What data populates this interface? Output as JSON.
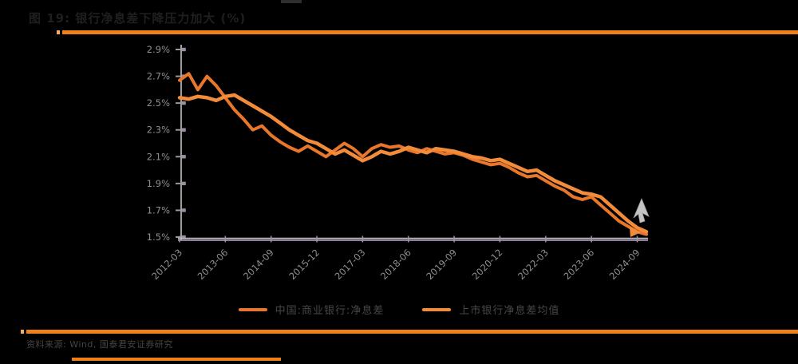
{
  "figure": {
    "title": "图 19: 银行净息差下降压力加大 (%)",
    "source_note": "资料来源: Wind, 国泰君安证券研究",
    "accent_color": "#F08119",
    "accent_light": "#F7AA60"
  },
  "chart_data": {
    "type": "line",
    "title": "银行净息差 (%)",
    "xlabel": "",
    "ylabel": "",
    "ylim": [
      1.5,
      2.9
    ],
    "y_ticks": [
      2.9,
      2.7,
      2.5,
      2.3,
      2.1,
      1.9,
      1.7,
      1.5
    ],
    "grid": false,
    "legend_position": "bottom",
    "n_points": 52,
    "x_start": "2012-03",
    "x_freq": "quarterly",
    "tick_indices": [
      0,
      5,
      10,
      15,
      20,
      25,
      30,
      35,
      40,
      45,
      50
    ],
    "x_tick_labels": [
      "2012-03",
      "2013-06",
      "2014-09",
      "2015-12",
      "2017-03",
      "2018-06",
      "2019-09",
      "2020-12",
      "2022-03",
      "2023-06",
      "2024-09"
    ],
    "axis_color": "#c3c3c3",
    "baseline_color": "#b49ac1",
    "tick_text_color": "#8e8e8e",
    "series": [
      {
        "name": "中国:商业银行:净息差",
        "color": "#E8762B",
        "width": 4,
        "values": [
          2.67,
          2.72,
          2.6,
          2.7,
          2.63,
          2.54,
          2.45,
          2.38,
          2.3,
          2.33,
          2.26,
          2.21,
          2.17,
          2.14,
          2.18,
          2.14,
          2.1,
          2.15,
          2.2,
          2.16,
          2.1,
          2.16,
          2.19,
          2.17,
          2.18,
          2.15,
          2.13,
          2.16,
          2.14,
          2.12,
          2.13,
          2.11,
          2.08,
          2.06,
          2.04,
          2.05,
          2.02,
          1.98,
          1.95,
          1.96,
          1.92,
          1.88,
          1.85,
          1.8,
          1.78,
          1.8,
          1.74,
          1.68,
          1.62,
          1.58,
          1.54,
          1.52
        ]
      },
      {
        "name": "上市银行净息差均值",
        "color": "#F28C3B",
        "width": 4.5,
        "values": [
          2.54,
          2.53,
          2.55,
          2.54,
          2.52,
          2.55,
          2.56,
          2.52,
          2.48,
          2.44,
          2.4,
          2.35,
          2.3,
          2.26,
          2.22,
          2.2,
          2.16,
          2.12,
          2.15,
          2.11,
          2.07,
          2.1,
          2.14,
          2.12,
          2.14,
          2.17,
          2.15,
          2.13,
          2.16,
          2.15,
          2.14,
          2.12,
          2.1,
          2.09,
          2.07,
          2.08,
          2.05,
          2.02,
          1.99,
          2.0,
          1.96,
          1.92,
          1.89,
          1.86,
          1.83,
          1.82,
          1.8,
          1.74,
          1.68,
          1.62,
          1.57,
          1.54
        ]
      }
    ]
  }
}
